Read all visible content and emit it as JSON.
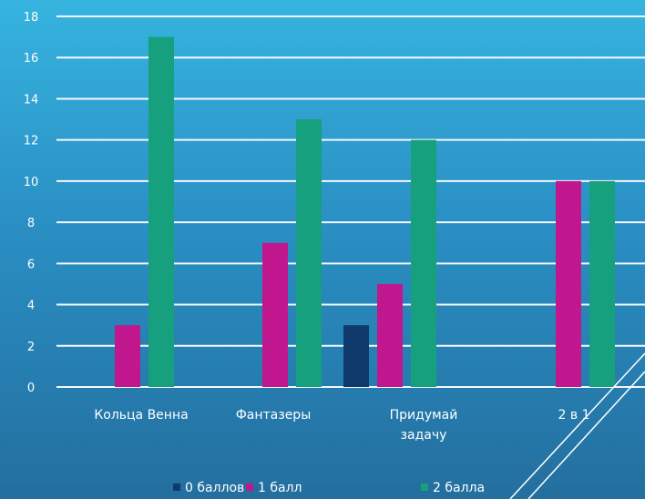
{
  "chart_data": {
    "type": "bar",
    "title": "",
    "categories": [
      [
        "Кольца Венна"
      ],
      [
        "Фантазеры"
      ],
      [
        "Придумай",
        "задачу"
      ],
      [
        "2 в 1"
      ]
    ],
    "series": [
      {
        "name": "0 баллов",
        "values": [
          0,
          0,
          3,
          0
        ],
        "color": "#0f3a6b"
      },
      {
        "name": "1 балл",
        "values": [
          3,
          7,
          5,
          10
        ],
        "color": "#c0168e"
      },
      {
        "name": "2 балла",
        "values": [
          17,
          13,
          12,
          10
        ],
        "color": "#17a07e"
      }
    ],
    "ylim": [
      0,
      18
    ],
    "yticks": [
      0,
      2,
      4,
      6,
      8,
      10,
      12,
      14,
      16,
      18
    ],
    "grid": true,
    "legend": "bottom"
  },
  "legend_labels": [
    "0 баллов",
    "1 балл",
    "2 балла"
  ]
}
